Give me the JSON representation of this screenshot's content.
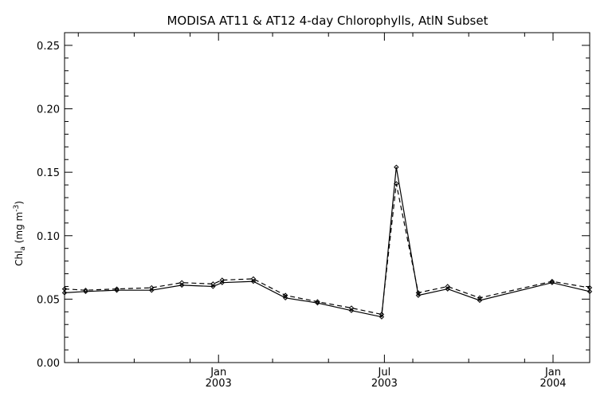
{
  "chart_data": {
    "type": "line",
    "title": "MODISA AT11 & AT12 4-day Chlorophylls, AtlN Subset",
    "ylabel": {
      "main": "Chl",
      "sub": "a",
      "unit_open": " (mg m",
      "sup": "-3",
      "unit_close": ")"
    },
    "xlabel": "",
    "ylim": [
      0.0,
      0.26
    ],
    "yticks": [
      "0.00",
      "0.05",
      "0.10",
      "0.15",
      "0.20",
      "0.25"
    ],
    "xlim": [
      "2002-07-17",
      "2004-02-10"
    ],
    "xticks_major": [
      {
        "date": "2003-01-01",
        "month": "Jan",
        "year": "2003"
      },
      {
        "date": "2003-07-01",
        "month": "Jul",
        "year": "2003"
      },
      {
        "date": "2004-01-01",
        "month": "Jan",
        "year": "2004"
      }
    ],
    "xticks_minor": [
      "2002-08-01",
      "2002-10-01",
      "2002-12-01",
      "2003-03-01",
      "2003-05-01",
      "2003-08-01",
      "2003-10-01",
      "2003-12-01"
    ],
    "grid": false,
    "series": [
      {
        "style": "solid",
        "x": [
          "2002-07-17",
          "2002-08-09",
          "2002-09-12",
          "2002-10-20",
          "2002-11-22",
          "2002-12-26",
          "2003-01-05",
          "2003-02-08",
          "2003-03-15",
          "2003-04-19",
          "2003-05-26",
          "2003-06-28",
          "2003-07-14",
          "2003-08-07",
          "2003-09-08",
          "2003-10-13",
          "2003-12-31",
          "2004-02-10"
        ],
        "values": [
          0.055,
          0.056,
          0.057,
          0.057,
          0.061,
          0.06,
          0.063,
          0.064,
          0.051,
          0.047,
          0.041,
          0.036,
          0.154,
          0.053,
          0.058,
          0.049,
          0.063,
          0.056
        ]
      },
      {
        "style": "dashed",
        "x": [
          "2002-07-17",
          "2002-08-09",
          "2002-09-12",
          "2002-10-20",
          "2002-11-22",
          "2002-12-26",
          "2003-01-05",
          "2003-02-08",
          "2003-03-15",
          "2003-04-19",
          "2003-05-26",
          "2003-06-28",
          "2003-07-14",
          "2003-08-07",
          "2003-09-08",
          "2003-10-13",
          "2003-12-31",
          "2004-02-10"
        ],
        "values": [
          0.058,
          0.057,
          0.058,
          0.059,
          0.063,
          0.062,
          0.065,
          0.066,
          0.053,
          0.048,
          0.043,
          0.038,
          0.141,
          0.055,
          0.06,
          0.051,
          0.064,
          0.059
        ]
      }
    ]
  }
}
